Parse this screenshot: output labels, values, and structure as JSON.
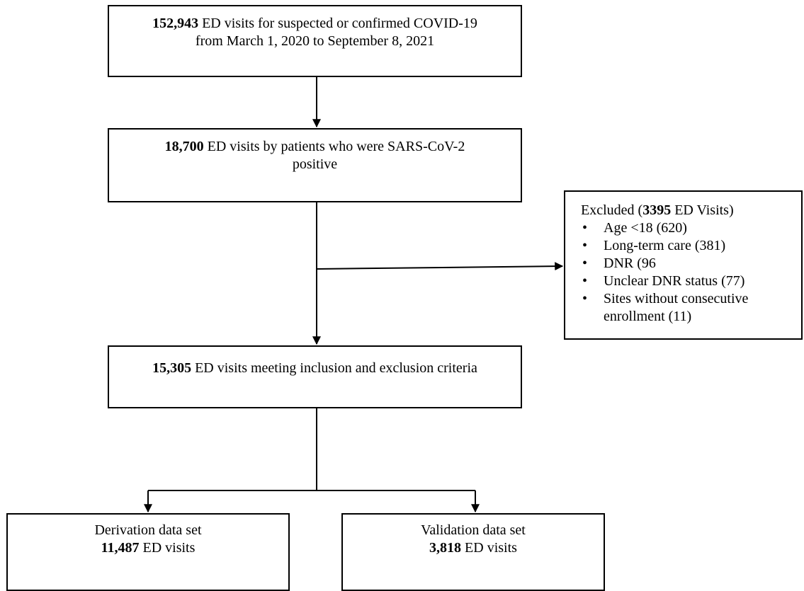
{
  "boxes": {
    "source": {
      "count": "152,943",
      "line1_rest": " ED visits for suspected or confirmed COVID-19",
      "line2": "from  March 1, 2020 to September 8, 2021"
    },
    "positive": {
      "count": "18,700",
      "line1_rest": " ED visits by patients who were SARS-CoV-2",
      "line2": "positive"
    },
    "eligible": {
      "count": "15,305",
      "line1_rest": " ED visits meeting inclusion and exclusion criteria"
    },
    "derivation": {
      "title": "Derivation data set",
      "count": "11,487",
      "rest": " ED visits"
    },
    "validation": {
      "title": "Validation data set",
      "count": "3,818",
      "rest": " ED visits"
    }
  },
  "excluded": {
    "prefix": "Excluded (",
    "count": "3395",
    "suffix": " ED Visits)",
    "bullet": "•",
    "items": [
      "Age <18 (620)",
      "Long-term care (381)",
      "DNR (96",
      "Unclear DNR status (77)",
      "Sites without consecutive enrollment (11)"
    ]
  }
}
